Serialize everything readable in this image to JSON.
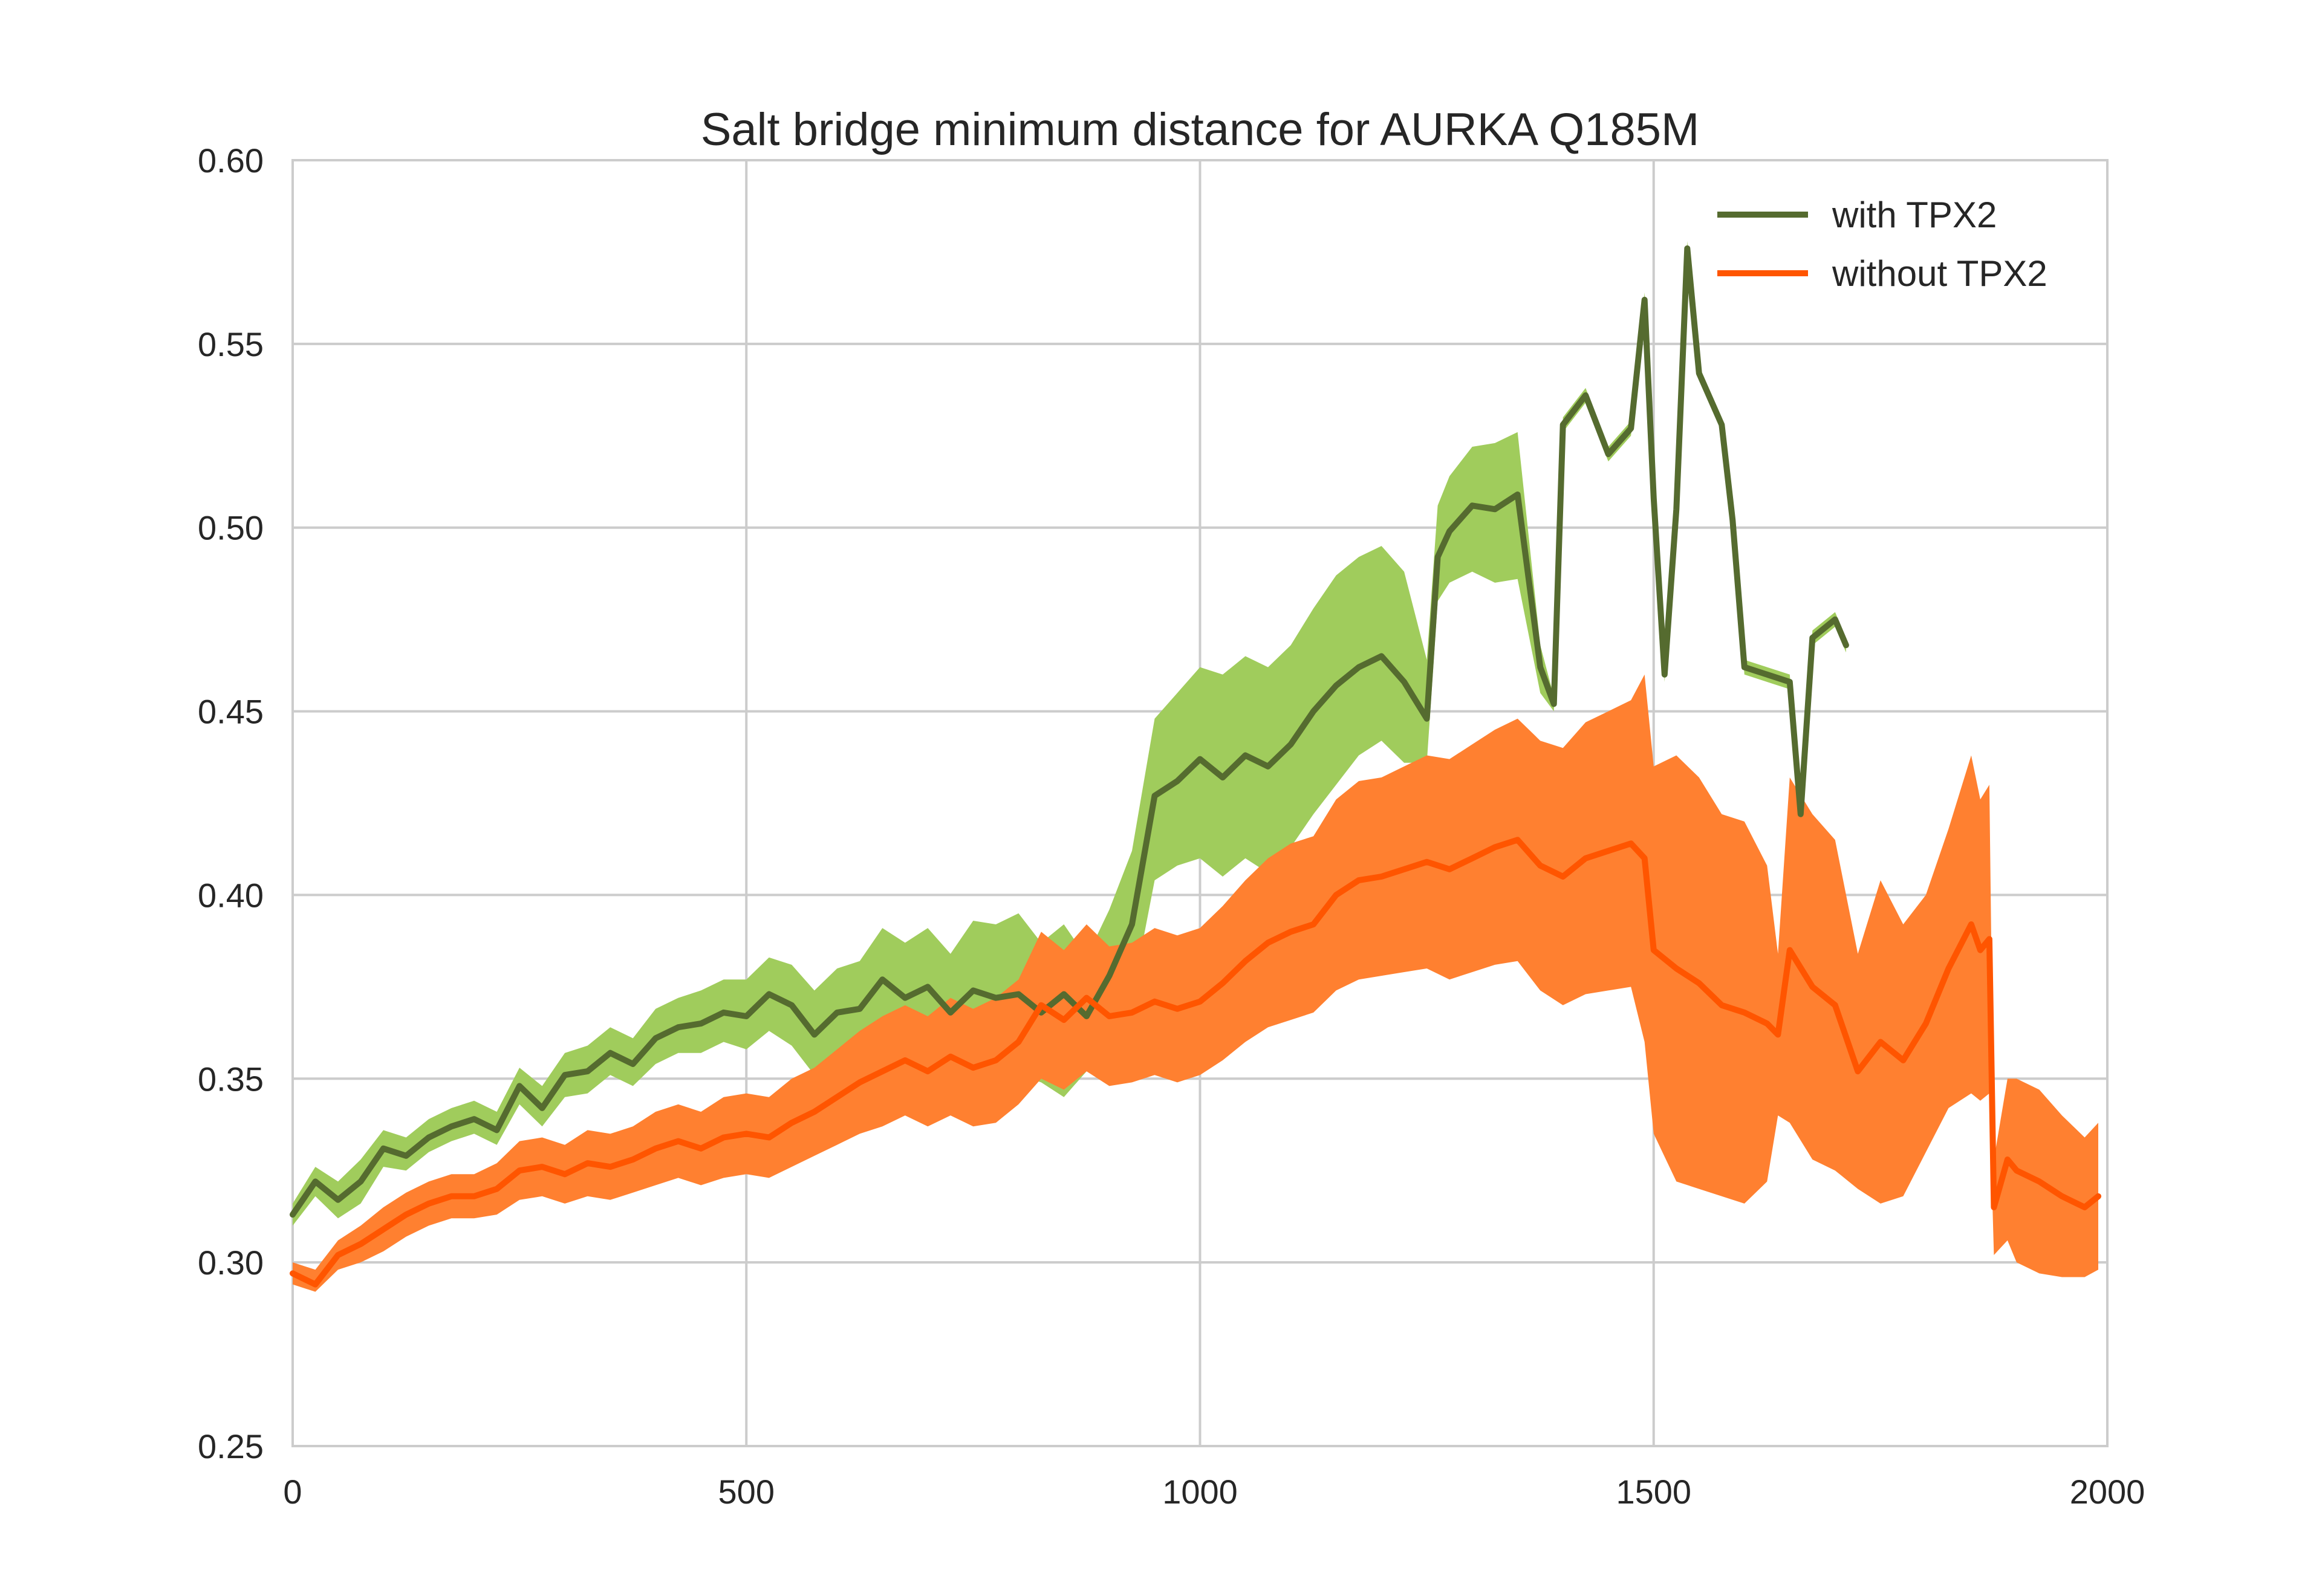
{
  "chart_data": {
    "type": "line",
    "title": "Salt bridge minimum distance for AURKA Q185M",
    "xlabel": "",
    "ylabel": "",
    "xlim": [
      0,
      2000
    ],
    "ylim": [
      0.25,
      0.6
    ],
    "xticks": [
      "0",
      "500",
      "1000",
      "1500",
      "2000"
    ],
    "yticks": [
      "0.25",
      "0.30",
      "0.35",
      "0.40",
      "0.45",
      "0.50",
      "0.55",
      "0.60"
    ],
    "grid": true,
    "legend_position": "top-right",
    "series": [
      {
        "name": "with TPX2",
        "line_color": "#556b2f",
        "band_color": "#a0cc5c",
        "x": [
          0,
          25,
          50,
          75,
          100,
          125,
          150,
          175,
          200,
          225,
          250,
          275,
          300,
          325,
          350,
          375,
          400,
          425,
          450,
          475,
          500,
          525,
          550,
          575,
          600,
          625,
          650,
          675,
          700,
          725,
          750,
          775,
          800,
          825,
          850,
          875,
          900,
          925,
          950,
          975,
          1000,
          1025,
          1050,
          1075,
          1100,
          1125,
          1150,
          1175,
          1200,
          1225,
          1250,
          1262,
          1275,
          1300,
          1325,
          1350,
          1375,
          1390,
          1400,
          1425,
          1450,
          1475,
          1490,
          1500,
          1512,
          1525,
          1537,
          1550,
          1575,
          1587,
          1600,
          1625,
          1650,
          1662,
          1675,
          1700,
          1712
        ],
        "y": [
          0.313,
          0.322,
          0.317,
          0.322,
          0.331,
          0.329,
          0.334,
          0.337,
          0.339,
          0.336,
          0.348,
          0.342,
          0.351,
          0.352,
          0.357,
          0.354,
          0.361,
          0.364,
          0.365,
          0.368,
          0.367,
          0.373,
          0.37,
          0.362,
          0.368,
          0.369,
          0.377,
          0.372,
          0.375,
          0.368,
          0.374,
          0.372,
          0.373,
          0.368,
          0.373,
          0.367,
          0.378,
          0.392,
          0.427,
          0.431,
          0.437,
          0.432,
          0.438,
          0.435,
          0.441,
          0.45,
          0.457,
          0.462,
          0.465,
          0.458,
          0.448,
          0.492,
          0.499,
          0.506,
          0.505,
          0.509,
          0.462,
          0.452,
          0.528,
          0.536,
          0.52,
          0.527,
          0.562,
          0.508,
          0.46,
          0.505,
          0.576,
          0.542,
          0.528,
          0.502,
          0.462,
          0.46,
          0.458,
          0.422,
          0.47,
          0.475,
          0.468
        ],
        "band_low": [
          0.31,
          0.318,
          0.312,
          0.316,
          0.326,
          0.325,
          0.33,
          0.333,
          0.335,
          0.332,
          0.343,
          0.337,
          0.345,
          0.346,
          0.351,
          0.348,
          0.354,
          0.357,
          0.357,
          0.36,
          0.358,
          0.363,
          0.359,
          0.351,
          0.356,
          0.356,
          0.363,
          0.357,
          0.359,
          0.352,
          0.355,
          0.352,
          0.351,
          0.349,
          0.345,
          0.352,
          0.36,
          0.372,
          0.404,
          0.408,
          0.41,
          0.405,
          0.41,
          0.406,
          0.413,
          0.422,
          0.43,
          0.438,
          0.442,
          0.436,
          0.436,
          0.48,
          0.485,
          0.488,
          0.485,
          0.486,
          0.455,
          0.45,
          0.526,
          0.534,
          0.518,
          0.525,
          0.56,
          0.506,
          0.458,
          0.503,
          0.574,
          0.54,
          0.526,
          0.5,
          0.46,
          0.458,
          0.456,
          0.42,
          0.468,
          0.473,
          0.466
        ],
        "band_high": [
          0.316,
          0.326,
          0.322,
          0.328,
          0.336,
          0.334,
          0.339,
          0.342,
          0.344,
          0.341,
          0.353,
          0.348,
          0.357,
          0.359,
          0.364,
          0.361,
          0.369,
          0.372,
          0.374,
          0.377,
          0.377,
          0.383,
          0.381,
          0.374,
          0.38,
          0.382,
          0.391,
          0.387,
          0.391,
          0.384,
          0.393,
          0.392,
          0.395,
          0.387,
          0.392,
          0.383,
          0.396,
          0.412,
          0.448,
          0.455,
          0.462,
          0.46,
          0.465,
          0.462,
          0.468,
          0.478,
          0.487,
          0.492,
          0.495,
          0.488,
          0.464,
          0.506,
          0.514,
          0.522,
          0.523,
          0.526,
          0.468,
          0.454,
          0.53,
          0.538,
          0.522,
          0.529,
          0.564,
          0.51,
          0.462,
          0.507,
          0.578,
          0.544,
          0.53,
          0.504,
          0.464,
          0.462,
          0.46,
          0.424,
          0.472,
          0.477,
          0.47
        ]
      },
      {
        "name": "without TPX2",
        "line_color": "#ff5500",
        "band_color": "#ff8030",
        "x": [
          0,
          25,
          50,
          75,
          100,
          125,
          150,
          175,
          200,
          225,
          250,
          275,
          300,
          325,
          350,
          375,
          400,
          425,
          450,
          475,
          500,
          525,
          550,
          575,
          600,
          625,
          650,
          675,
          700,
          725,
          750,
          775,
          800,
          825,
          850,
          875,
          900,
          925,
          950,
          975,
          1000,
          1025,
          1050,
          1075,
          1100,
          1125,
          1150,
          1175,
          1200,
          1225,
          1250,
          1275,
          1300,
          1325,
          1350,
          1375,
          1400,
          1425,
          1450,
          1475,
          1490,
          1500,
          1525,
          1550,
          1575,
          1600,
          1625,
          1637,
          1650,
          1675,
          1700,
          1725,
          1750,
          1775,
          1800,
          1825,
          1850,
          1860,
          1870,
          1875,
          1890,
          1900,
          1925,
          1950,
          1975,
          1990
        ],
        "y": [
          0.297,
          0.294,
          0.302,
          0.305,
          0.309,
          0.313,
          0.316,
          0.318,
          0.318,
          0.32,
          0.325,
          0.326,
          0.324,
          0.327,
          0.326,
          0.328,
          0.331,
          0.333,
          0.331,
          0.334,
          0.335,
          0.334,
          0.338,
          0.341,
          0.345,
          0.349,
          0.352,
          0.355,
          0.352,
          0.356,
          0.353,
          0.355,
          0.36,
          0.37,
          0.366,
          0.372,
          0.367,
          0.368,
          0.371,
          0.369,
          0.371,
          0.376,
          0.382,
          0.387,
          0.39,
          0.392,
          0.4,
          0.404,
          0.405,
          0.407,
          0.409,
          0.407,
          0.41,
          0.413,
          0.415,
          0.408,
          0.405,
          0.41,
          0.412,
          0.414,
          0.41,
          0.385,
          0.38,
          0.376,
          0.37,
          0.368,
          0.365,
          0.362,
          0.385,
          0.375,
          0.37,
          0.352,
          0.36,
          0.355,
          0.365,
          0.38,
          0.392,
          0.385,
          0.388,
          0.315,
          0.328,
          0.325,
          0.322,
          0.318,
          0.315,
          0.318
        ],
        "band_low": [
          0.294,
          0.292,
          0.298,
          0.3,
          0.303,
          0.307,
          0.31,
          0.312,
          0.312,
          0.313,
          0.317,
          0.318,
          0.316,
          0.318,
          0.317,
          0.319,
          0.321,
          0.323,
          0.321,
          0.323,
          0.324,
          0.323,
          0.326,
          0.329,
          0.332,
          0.335,
          0.337,
          0.34,
          0.337,
          0.34,
          0.337,
          0.338,
          0.343,
          0.35,
          0.347,
          0.352,
          0.348,
          0.349,
          0.351,
          0.349,
          0.351,
          0.355,
          0.36,
          0.364,
          0.366,
          0.368,
          0.374,
          0.377,
          0.378,
          0.379,
          0.38,
          0.377,
          0.379,
          0.381,
          0.382,
          0.374,
          0.37,
          0.373,
          0.374,
          0.375,
          0.36,
          0.335,
          0.322,
          0.32,
          0.318,
          0.316,
          0.322,
          0.34,
          0.338,
          0.328,
          0.325,
          0.32,
          0.316,
          0.318,
          0.33,
          0.342,
          0.346,
          0.344,
          0.346,
          0.302,
          0.306,
          0.3,
          0.297,
          0.296,
          0.296,
          0.298
        ],
        "band_high": [
          0.3,
          0.298,
          0.306,
          0.31,
          0.315,
          0.319,
          0.322,
          0.324,
          0.324,
          0.327,
          0.333,
          0.334,
          0.332,
          0.336,
          0.335,
          0.337,
          0.341,
          0.343,
          0.341,
          0.345,
          0.346,
          0.345,
          0.35,
          0.353,
          0.358,
          0.363,
          0.367,
          0.37,
          0.367,
          0.372,
          0.369,
          0.372,
          0.377,
          0.39,
          0.385,
          0.392,
          0.386,
          0.387,
          0.391,
          0.389,
          0.391,
          0.397,
          0.404,
          0.41,
          0.414,
          0.416,
          0.426,
          0.431,
          0.432,
          0.435,
          0.438,
          0.437,
          0.441,
          0.445,
          0.448,
          0.442,
          0.44,
          0.447,
          0.45,
          0.453,
          0.46,
          0.435,
          0.438,
          0.432,
          0.422,
          0.42,
          0.408,
          0.384,
          0.432,
          0.422,
          0.415,
          0.384,
          0.404,
          0.392,
          0.4,
          0.418,
          0.438,
          0.426,
          0.43,
          0.328,
          0.35,
          0.35,
          0.347,
          0.34,
          0.334,
          0.338
        ]
      }
    ]
  }
}
